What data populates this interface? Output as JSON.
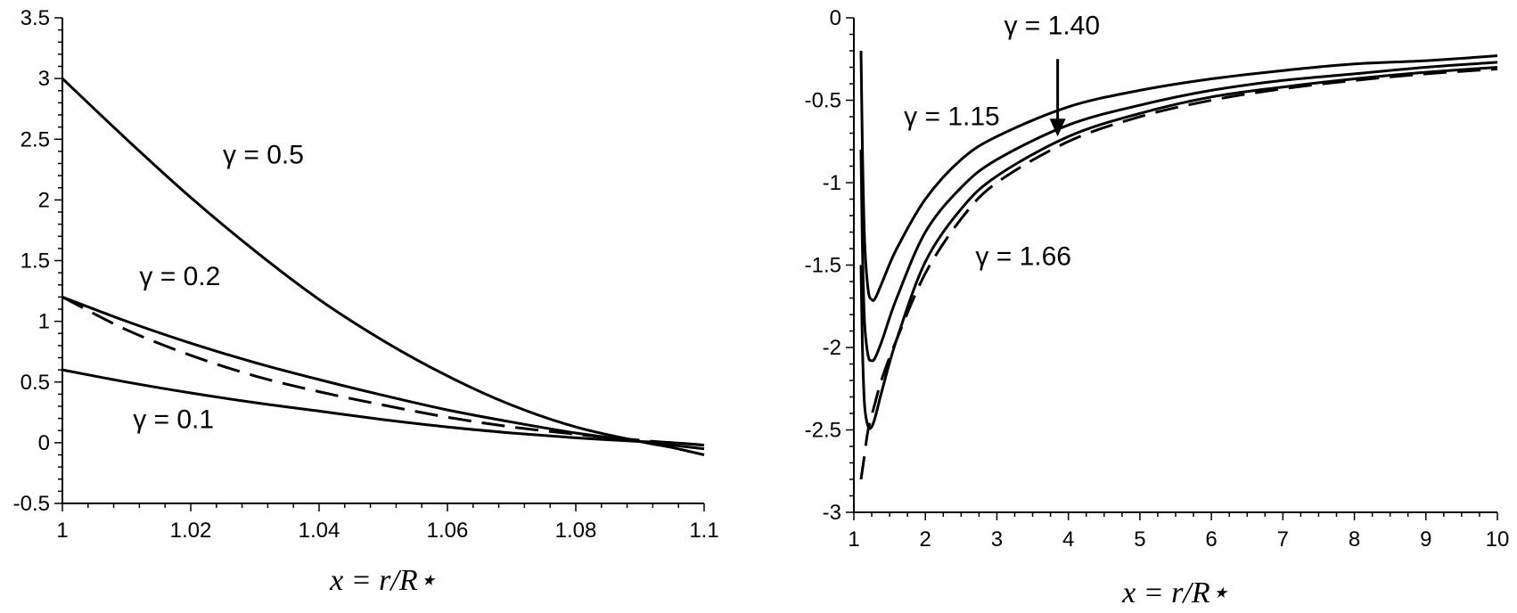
{
  "chart_data": [
    {
      "type": "line",
      "xlabel": "x = r/R⋆",
      "ylabel": "",
      "xlim": [
        1,
        1.1
      ],
      "ylim": [
        -0.5,
        3.5
      ],
      "xticks": [
        "1",
        "1.02",
        "1.04",
        "1.06",
        "1.08",
        "1.1"
      ],
      "yticks": [
        "-0.5",
        "0",
        "0.5",
        "1",
        "1.5",
        "2",
        "2.5",
        "3",
        "3.5"
      ],
      "grid": false,
      "series": [
        {
          "name": "γ = 0.5",
          "style": "solid",
          "x": [
            1,
            1.01,
            1.02,
            1.03,
            1.04,
            1.05,
            1.06,
            1.07,
            1.08,
            1.09,
            1.095,
            1.1
          ],
          "y": [
            3.0,
            2.5,
            2.02,
            1.58,
            1.18,
            0.84,
            0.55,
            0.31,
            0.13,
            0.01,
            -0.04,
            -0.1
          ]
        },
        {
          "name": "γ = 0.2",
          "style": "solid",
          "x": [
            1,
            1.01,
            1.02,
            1.03,
            1.04,
            1.05,
            1.06,
            1.07,
            1.08,
            1.09,
            1.095,
            1.1
          ],
          "y": [
            1.2,
            1.0,
            0.82,
            0.66,
            0.52,
            0.39,
            0.27,
            0.17,
            0.08,
            0.01,
            -0.02,
            -0.05
          ]
        },
        {
          "name": "",
          "style": "dashed",
          "x": [
            1,
            1.01,
            1.02,
            1.03,
            1.04,
            1.05,
            1.06,
            1.07,
            1.08,
            1.09,
            1.095,
            1.1
          ],
          "y": [
            1.2,
            0.93,
            0.72,
            0.55,
            0.42,
            0.31,
            0.21,
            0.13,
            0.07,
            0.02,
            0.0,
            -0.02
          ]
        },
        {
          "name": "γ = 0.1",
          "style": "solid",
          "x": [
            1,
            1.01,
            1.02,
            1.03,
            1.04,
            1.05,
            1.06,
            1.07,
            1.08,
            1.09,
            1.095,
            1.1
          ],
          "y": [
            0.6,
            0.5,
            0.41,
            0.33,
            0.26,
            0.19,
            0.13,
            0.08,
            0.04,
            0.01,
            0.0,
            -0.02
          ]
        }
      ],
      "annotations": [
        {
          "text": "γ = 0.5",
          "x": 1.025,
          "y": 2.3
        },
        {
          "text": "γ = 0.2",
          "x": 1.012,
          "y": 1.3
        },
        {
          "text": "γ = 0.1",
          "x": 1.011,
          "y": 0.12
        }
      ]
    },
    {
      "type": "line",
      "xlabel": "x = r/R⋆",
      "ylabel": "",
      "xlim": [
        1,
        10
      ],
      "ylim": [
        -3,
        0
      ],
      "xticks": [
        "1",
        "2",
        "3",
        "4",
        "5",
        "6",
        "7",
        "8",
        "9",
        "10"
      ],
      "yticks": [
        "-3",
        "-2.5",
        "-2",
        "-1.5",
        "-1",
        "-0.5",
        "0"
      ],
      "grid": false,
      "series": [
        {
          "name": "γ = 1.15",
          "style": "solid",
          "x": [
            1.1,
            1.12,
            1.15,
            1.2,
            1.25,
            1.3,
            1.4,
            1.6,
            2,
            2.5,
            3,
            4,
            5,
            6,
            7,
            8,
            9,
            10
          ],
          "y": [
            -0.2,
            -0.8,
            -1.35,
            -1.65,
            -1.71,
            -1.7,
            -1.6,
            -1.4,
            -1.1,
            -0.86,
            -0.72,
            -0.54,
            -0.44,
            -0.37,
            -0.32,
            -0.28,
            -0.26,
            -0.23
          ]
        },
        {
          "name": "γ = 1.40",
          "style": "solid",
          "x": [
            1.1,
            1.12,
            1.15,
            1.2,
            1.25,
            1.3,
            1.4,
            1.6,
            2,
            2.5,
            3,
            4,
            5,
            6,
            7,
            8,
            9,
            10
          ],
          "y": [
            -0.8,
            -1.4,
            -1.85,
            -2.05,
            -2.08,
            -2.06,
            -1.95,
            -1.7,
            -1.3,
            -1.03,
            -0.86,
            -0.65,
            -0.53,
            -0.44,
            -0.38,
            -0.34,
            -0.3,
            -0.27
          ]
        },
        {
          "name": "γ = 1.66",
          "style": "solid",
          "x": [
            1.1,
            1.12,
            1.15,
            1.2,
            1.25,
            1.3,
            1.4,
            1.6,
            2,
            2.5,
            3,
            4,
            5,
            6,
            7,
            8,
            9,
            10
          ],
          "y": [
            -1.5,
            -2.0,
            -2.35,
            -2.48,
            -2.48,
            -2.42,
            -2.25,
            -1.95,
            -1.48,
            -1.16,
            -0.96,
            -0.72,
            -0.58,
            -0.48,
            -0.42,
            -0.37,
            -0.33,
            -0.3
          ]
        },
        {
          "name": "",
          "style": "dashed",
          "x": [
            1.1,
            1.15,
            1.2,
            1.3,
            1.4,
            1.6,
            2,
            2.5,
            3,
            4,
            5,
            6,
            7,
            8,
            9,
            10
          ],
          "y": [
            -2.8,
            -2.65,
            -2.5,
            -2.33,
            -2.18,
            -1.95,
            -1.55,
            -1.22,
            -1.0,
            -0.75,
            -0.6,
            -0.5,
            -0.43,
            -0.38,
            -0.34,
            -0.31
          ]
        }
      ],
      "annotations": [
        {
          "text": "γ = 1.40",
          "x": 3.1,
          "y": -0.1
        },
        {
          "text": "γ = 1.15",
          "x": 1.7,
          "y": -0.65
        },
        {
          "text": "γ = 1.66",
          "x": 2.7,
          "y": -1.5
        }
      ],
      "arrow": {
        "from": [
          3.85,
          -0.25
        ],
        "to": [
          3.85,
          -0.72
        ]
      }
    }
  ]
}
